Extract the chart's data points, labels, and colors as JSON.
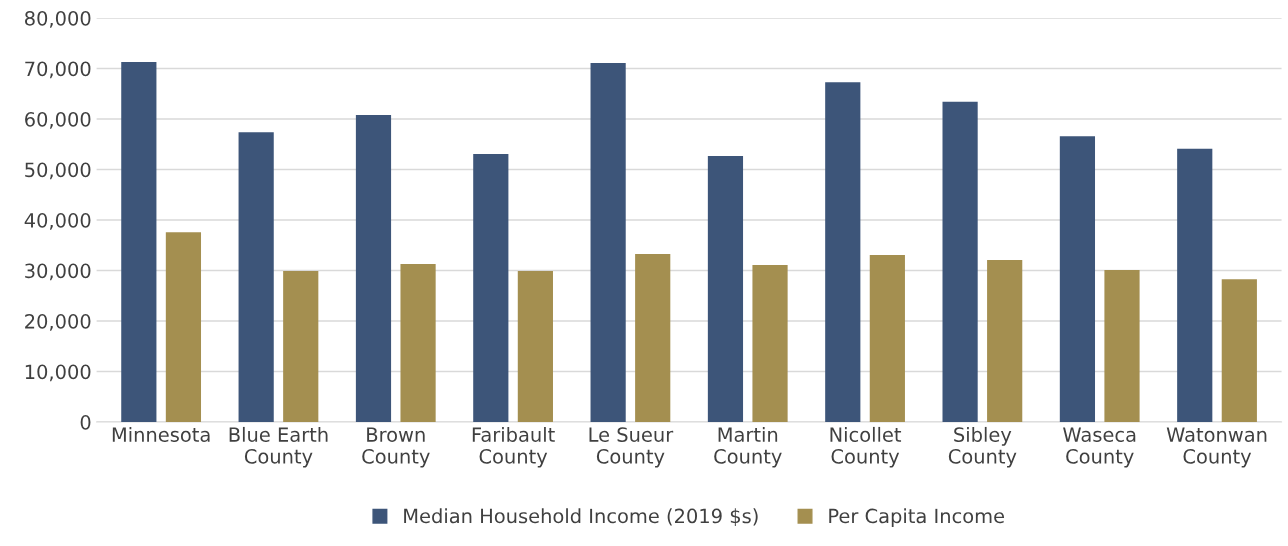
{
  "chart_data": {
    "type": "bar",
    "categories": [
      "Minnesota",
      "Blue Earth\nCounty",
      "Brown\nCounty",
      "Faribault\nCounty",
      "Le Sueur\nCounty",
      "Martin\nCounty",
      "Nicollet\nCounty",
      "Sibley\nCounty",
      "Waseca\nCounty",
      "Watonwan\nCounty"
    ],
    "series": [
      {
        "name": "Median Household Income (2019 $s)",
        "color": "#3d5579",
        "values": [
          71300,
          57400,
          60800,
          53100,
          71100,
          52700,
          67300,
          63400,
          56600,
          54100
        ]
      },
      {
        "name": "Per Capita Income",
        "color": "#a48f50",
        "values": [
          37600,
          29900,
          31300,
          29900,
          33300,
          31100,
          33100,
          32100,
          30100,
          28300
        ]
      }
    ],
    "ylim": [
      0,
      80000
    ],
    "yticks": [
      0,
      {
        "value": 10000,
        "label": "10,000"
      },
      {
        "value": 20000,
        "label": "20,000"
      },
      {
        "value": 30000,
        "label": "30,000"
      },
      {
        "value": 40000,
        "label": "40,000"
      },
      {
        "value": 50000,
        "label": "50,000"
      },
      {
        "value": 60000,
        "label": "60,000"
      },
      {
        "value": 70000,
        "label": "70,000"
      },
      {
        "value": 80000,
        "label": "80,000"
      }
    ],
    "grid": "y",
    "legend": "bottom"
  }
}
